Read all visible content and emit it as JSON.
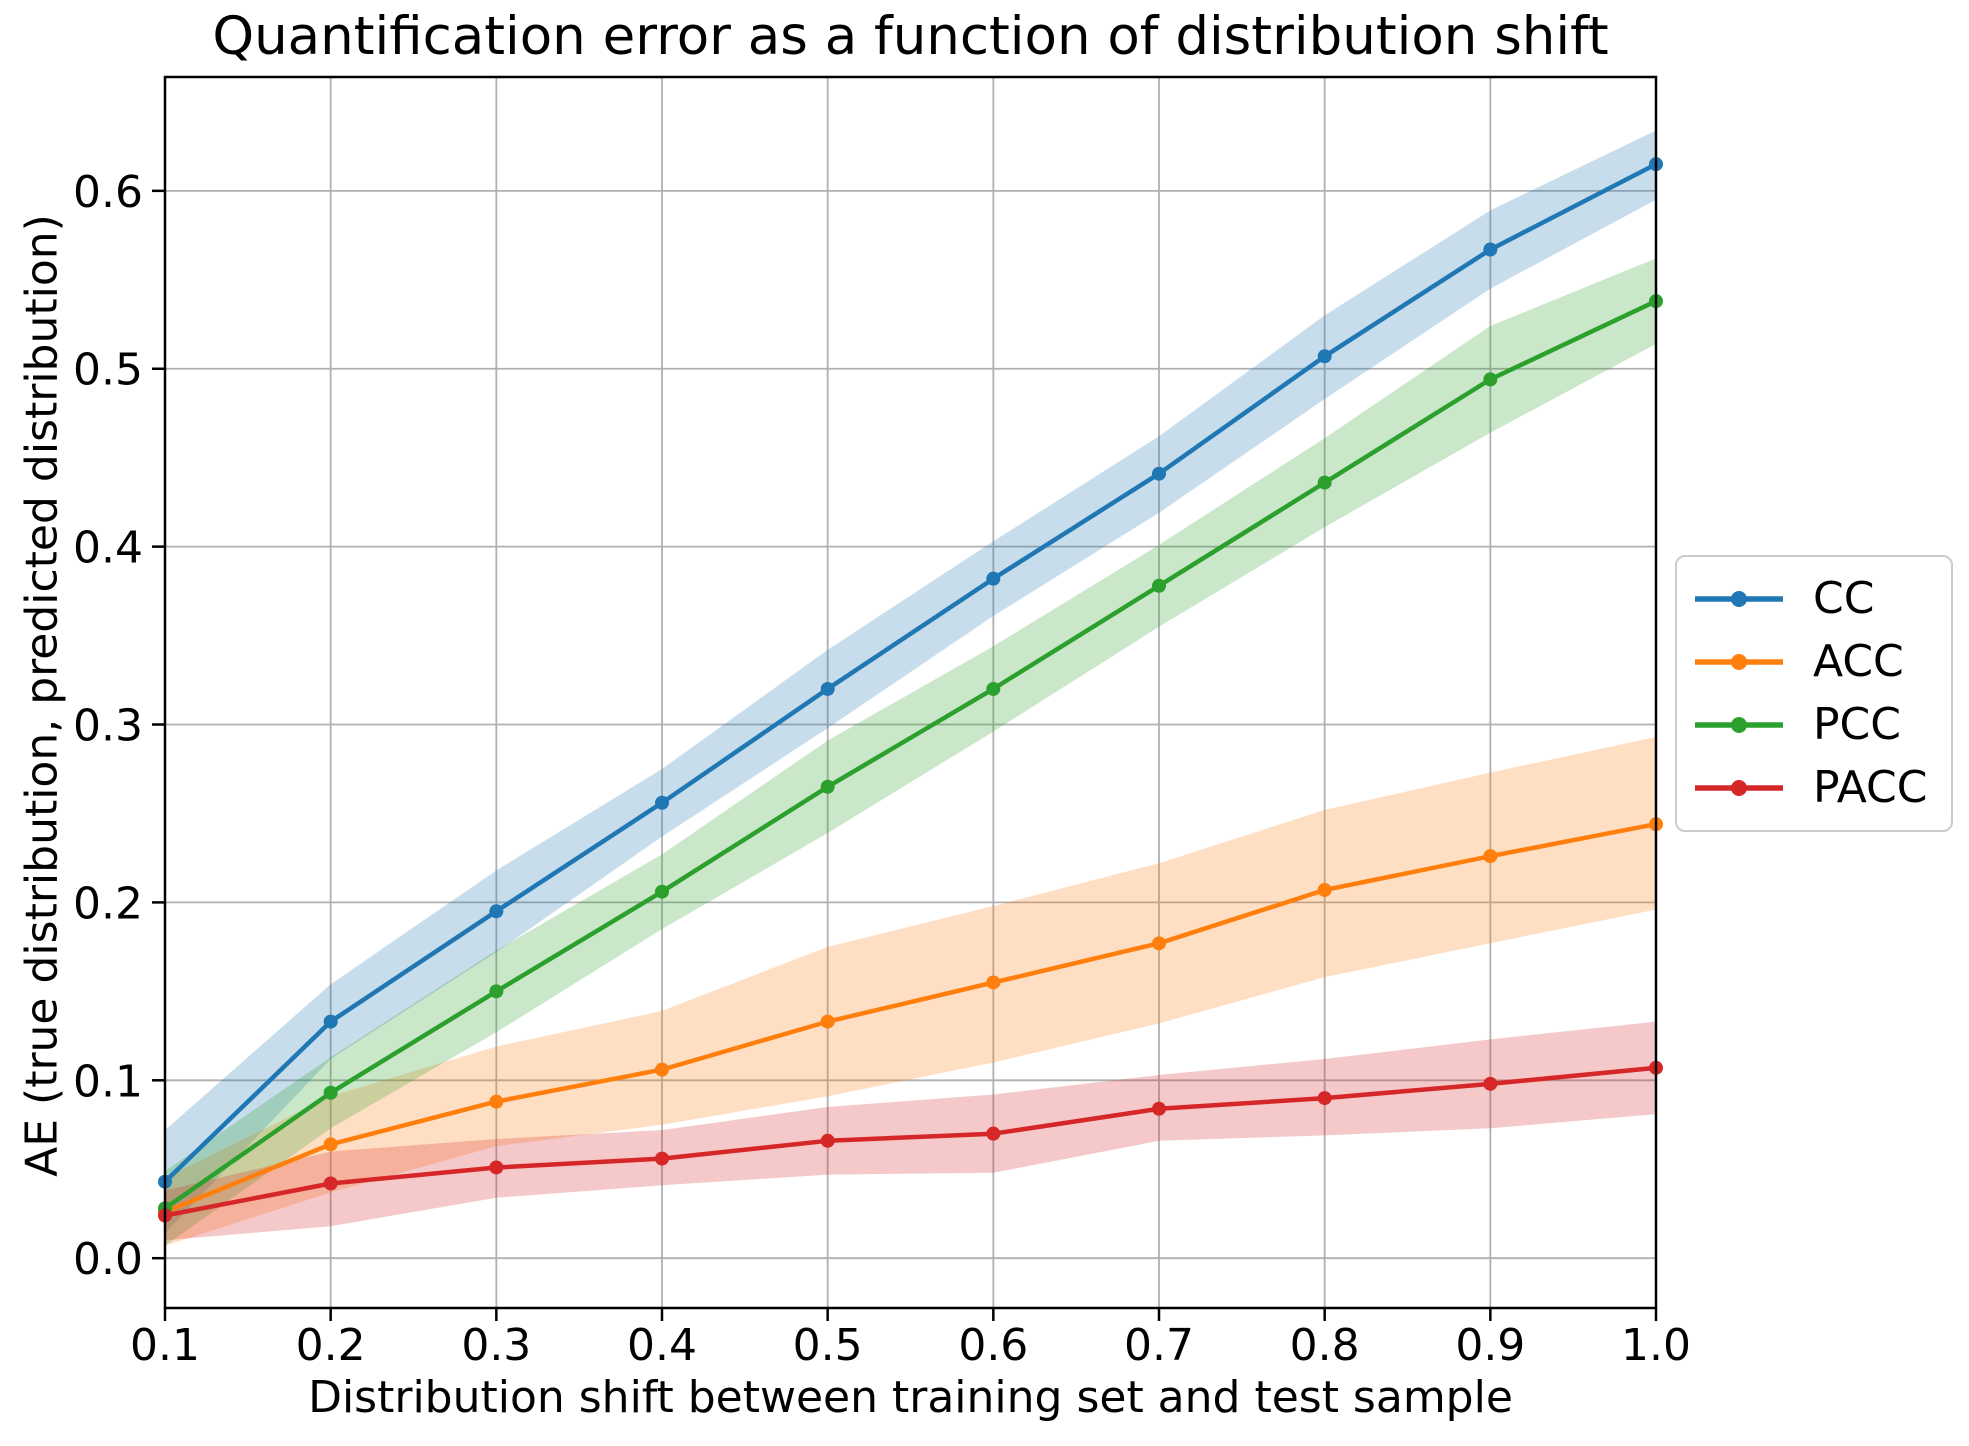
{
  "chart_data": {
    "type": "line",
    "title": "Quantification error as a function of distribution shift",
    "xlabel": "Distribution shift between training set and test sample",
    "ylabel": "AE (true distribution, predicted distribution)",
    "x": [
      0.1,
      0.2,
      0.3,
      0.4,
      0.5,
      0.6,
      0.7,
      0.8,
      0.9,
      1.0
    ],
    "xticks": [
      "0.1",
      "0.2",
      "0.3",
      "0.4",
      "0.5",
      "0.6",
      "0.7",
      "0.8",
      "0.9",
      "1.0"
    ],
    "yticks": [
      "0.0",
      "0.1",
      "0.2",
      "0.3",
      "0.4",
      "0.5",
      "0.6"
    ],
    "xlim": [
      0.1,
      1.0
    ],
    "ylim": [
      -0.028,
      0.664
    ],
    "grid": true,
    "legend_position": "right-outside",
    "band_alpha": 0.25,
    "grid_color": "#b0b0b0",
    "series": [
      {
        "name": "CC",
        "color": "#1f77b4",
        "values": [
          0.043,
          0.133,
          0.195,
          0.256,
          0.32,
          0.382,
          0.441,
          0.507,
          0.567,
          0.615
        ],
        "band_lower": [
          0.014,
          0.112,
          0.172,
          0.237,
          0.298,
          0.361,
          0.419,
          0.483,
          0.545,
          0.595
        ],
        "band_upper": [
          0.072,
          0.154,
          0.218,
          0.275,
          0.342,
          0.403,
          0.462,
          0.53,
          0.589,
          0.634
        ]
      },
      {
        "name": "ACC",
        "color": "#ff7f0e",
        "values": [
          0.026,
          0.064,
          0.088,
          0.106,
          0.133,
          0.155,
          0.177,
          0.207,
          0.226,
          0.244
        ],
        "band_lower": [
          0.007,
          0.037,
          0.063,
          0.075,
          0.091,
          0.11,
          0.132,
          0.158,
          0.177,
          0.196
        ],
        "band_upper": [
          0.045,
          0.091,
          0.119,
          0.139,
          0.175,
          0.198,
          0.222,
          0.252,
          0.273,
          0.293
        ]
      },
      {
        "name": "PCC",
        "color": "#2ca02c",
        "values": [
          0.028,
          0.093,
          0.15,
          0.206,
          0.265,
          0.32,
          0.378,
          0.436,
          0.494,
          0.538
        ],
        "band_lower": [
          0.007,
          0.073,
          0.127,
          0.185,
          0.239,
          0.296,
          0.355,
          0.411,
          0.464,
          0.514
        ],
        "band_upper": [
          0.049,
          0.113,
          0.173,
          0.227,
          0.291,
          0.344,
          0.401,
          0.461,
          0.524,
          0.562
        ]
      },
      {
        "name": "PACC",
        "color": "#d62728",
        "values": [
          0.024,
          0.042,
          0.051,
          0.056,
          0.066,
          0.07,
          0.084,
          0.09,
          0.098,
          0.107
        ],
        "band_lower": [
          0.01,
          0.018,
          0.034,
          0.041,
          0.047,
          0.048,
          0.066,
          0.069,
          0.073,
          0.081
        ],
        "band_upper": [
          0.038,
          0.06,
          0.067,
          0.072,
          0.085,
          0.092,
          0.103,
          0.112,
          0.123,
          0.133
        ]
      }
    ]
  }
}
